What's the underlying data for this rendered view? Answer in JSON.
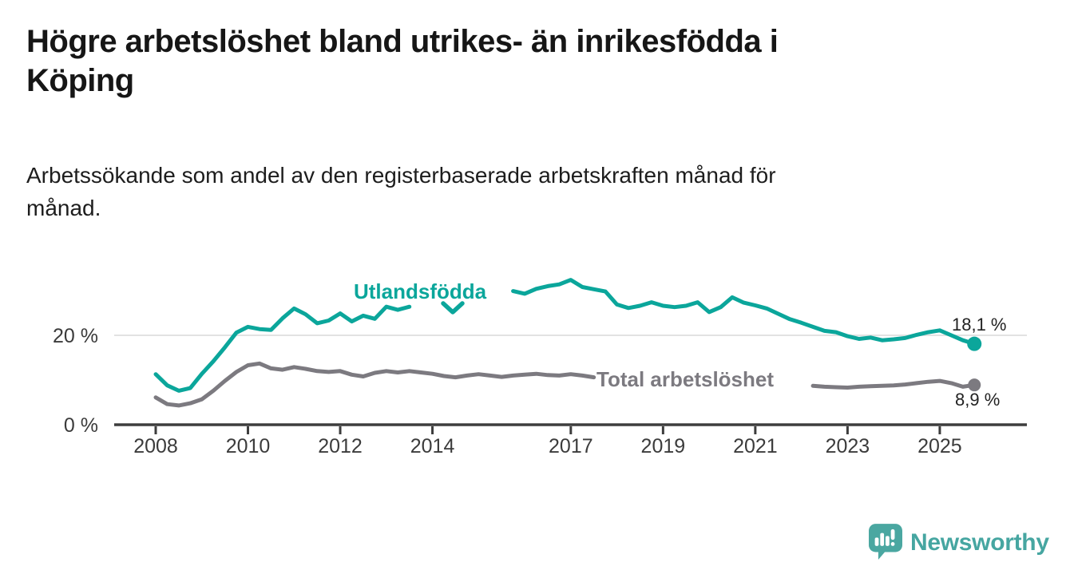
{
  "header": {
    "title": "Högre arbetslöshet bland utrikes- än inrikesfödda i Köping",
    "title_lines": [
      "Högre arbetslöshet bland utrikes- än inrikesfödda i",
      "Köping"
    ],
    "subtitle": "Arbetssökande som andel av den registerbaserade arbetskraften månad för månad.",
    "subtitle_lines": [
      "Arbetssökande som andel av den registerbaserade arbetskraften månad för",
      "månad."
    ]
  },
  "chart_data": {
    "type": "line",
    "title": "Högre arbetslöshet bland utrikes- än inrikesfödda i Köping",
    "subtitle": "Arbetssökande som andel av den registerbaserade arbetskraften månad för månad.",
    "unit": "%",
    "grid": "horizontal-20-only",
    "legend_position": "inline-labels-on-lines",
    "x_ticks": [
      2008,
      2010,
      2012,
      2014,
      2017,
      2019,
      2021,
      2023,
      2025
    ],
    "y_ticks": [
      {
        "value": 0,
        "label": "0 %"
      },
      {
        "value": 20,
        "label": "20 %"
      }
    ],
    "xlim": [
      2007.1,
      2026.9
    ],
    "ylim": [
      0,
      34
    ],
    "colors": {
      "utlandsfodda": "#0ba69b",
      "total": "#7c7a80",
      "axis": "#3d3d3d",
      "gridline": "#e2e2e2",
      "tick_label": "#3b3b3b"
    },
    "x": [
      2008,
      2008.25,
      2008.5,
      2008.75,
      2009,
      2009.25,
      2009.5,
      2009.75,
      2010,
      2010.25,
      2010.5,
      2010.75,
      2011,
      2011.25,
      2011.5,
      2011.75,
      2012,
      2012.25,
      2012.5,
      2012.75,
      2013,
      2013.25,
      2013.5,
      2013.75,
      2014,
      2014.25,
      2014.5,
      2014.75,
      2015,
      2015.25,
      2015.5,
      2015.75,
      2016,
      2016.25,
      2016.5,
      2016.75,
      2017,
      2017.25,
      2017.5,
      2017.75,
      2018,
      2018.25,
      2018.5,
      2018.75,
      2019,
      2019.25,
      2019.5,
      2019.75,
      2020,
      2020.25,
      2020.5,
      2020.75,
      2021,
      2021.25,
      2021.5,
      2021.75,
      2022,
      2022.25,
      2022.5,
      2022.75,
      2023,
      2023.25,
      2023.5,
      2023.75,
      2024,
      2024.25,
      2024.5,
      2024.75,
      2025,
      2025.25,
      2025.5,
      2025.75
    ],
    "series": [
      {
        "name": "Utlandsfödda",
        "color": "#0ba69b",
        "end_label": "18,1 %",
        "end_value": 18.1,
        "line_gap_note": "line hidden behind series label 2013.75-2015.5",
        "values": [
          11.3,
          8.8,
          7.6,
          8.2,
          11.4,
          14.2,
          17.3,
          20.6,
          21.9,
          21.4,
          21.2,
          23.8,
          26.0,
          24.7,
          22.7,
          23.3,
          24.9,
          23.1,
          24.4,
          23.7,
          26.4,
          25.7,
          26.4,
          null,
          null,
          null,
          null,
          null,
          null,
          null,
          null,
          29.9,
          29.3,
          30.4,
          31.0,
          31.4,
          32.4,
          30.8,
          30.3,
          29.8,
          26.9,
          26.1,
          26.6,
          27.4,
          26.6,
          26.3,
          26.6,
          27.4,
          25.2,
          26.3,
          28.5,
          27.3,
          26.7,
          26.0,
          24.8,
          23.6,
          22.8,
          21.9,
          21.0,
          20.7,
          19.8,
          19.2,
          19.5,
          18.9,
          19.1,
          19.4,
          20.1,
          20.7,
          21.1,
          20.0,
          18.9,
          18.1
        ]
      },
      {
        "name": "Total arbetslöshet",
        "color": "#7c7a80",
        "end_label": "8,9 %",
        "end_value": 8.9,
        "line_gap_note": "line hidden behind series label 2017.75-2022.0",
        "values": [
          6.1,
          4.6,
          4.3,
          4.8,
          5.7,
          7.6,
          9.8,
          11.8,
          13.3,
          13.7,
          12.6,
          12.3,
          12.9,
          12.5,
          12.0,
          11.8,
          12.0,
          11.2,
          10.8,
          11.6,
          12.0,
          11.7,
          12.0,
          11.7,
          11.4,
          10.9,
          10.6,
          11.0,
          11.3,
          11.0,
          10.7,
          11.0,
          11.2,
          11.4,
          11.1,
          11.0,
          11.3,
          11.0,
          10.6,
          null,
          null,
          null,
          null,
          null,
          null,
          null,
          null,
          null,
          null,
          null,
          null,
          null,
          null,
          null,
          null,
          null,
          null,
          8.7,
          8.5,
          8.4,
          8.3,
          8.5,
          8.6,
          8.7,
          8.8,
          9.0,
          9.3,
          9.6,
          9.8,
          9.3,
          8.5,
          8.9
        ]
      }
    ]
  },
  "branding": {
    "logo_text": "Newsworthy"
  }
}
